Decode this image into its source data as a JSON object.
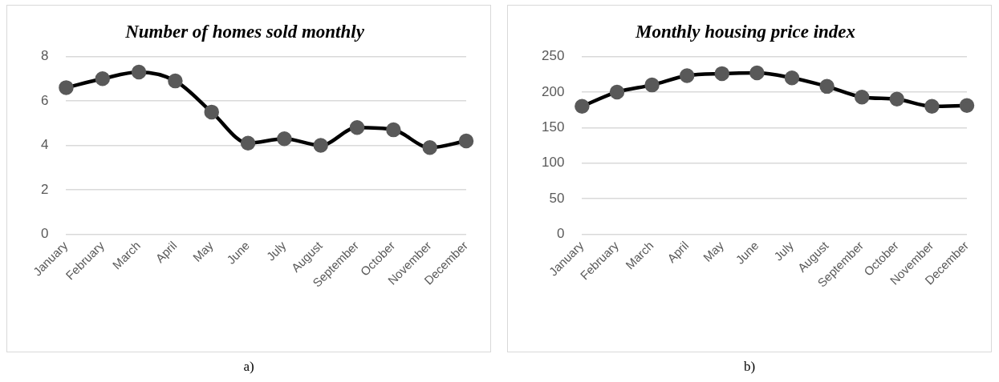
{
  "chart_data": [
    {
      "type": "line",
      "title": "Number of homes sold monthly",
      "categories": [
        "January",
        "February",
        "March",
        "April",
        "May",
        "June",
        "July",
        "August",
        "September",
        "October",
        "November",
        "December"
      ],
      "series": [
        {
          "color": "#000000",
          "values": [
            6.6,
            7.0,
            7.3,
            6.9,
            5.5,
            4.1,
            4.3,
            4.0,
            4.8,
            4.7,
            3.9,
            4.2
          ]
        }
      ],
      "ylim": [
        0,
        8
      ],
      "yticks": [
        0,
        2,
        4,
        6,
        8
      ],
      "grid": "y",
      "legend": false,
      "marker": "circle",
      "line_style": "solid",
      "annotations": [
        "a)"
      ]
    },
    {
      "type": "line",
      "title": "Monthly housing price index",
      "categories": [
        "January",
        "February",
        "March",
        "April",
        "May",
        "June",
        "July",
        "August",
        "September",
        "October",
        "November",
        "December"
      ],
      "series": [
        {
          "color": "#000000",
          "values": [
            180,
            200,
            210,
            223,
            226,
            227,
            220,
            208,
            193,
            190,
            180,
            181
          ]
        }
      ],
      "ylim": [
        0,
        250
      ],
      "yticks": [
        0,
        50,
        100,
        150,
        200,
        250
      ],
      "grid": "y",
      "legend": false,
      "marker": "circle",
      "line_style": "solid",
      "annotations": [
        "b)"
      ]
    }
  ]
}
